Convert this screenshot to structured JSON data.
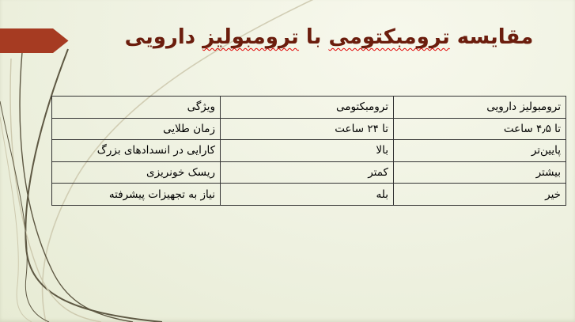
{
  "slide": {
    "title": {
      "full_text": "مقایسه ترومبکتومی با ترومبولیز دارویی",
      "segments": [
        {
          "text": "مقایسه ",
          "misspelled": false
        },
        {
          "text": "ترومبکتومی",
          "misspelled": true
        },
        {
          "text": " با ",
          "misspelled": false
        },
        {
          "text": "ترومبولیز",
          "misspelled": true
        },
        {
          "text": " دارویی",
          "misspelled": false
        }
      ],
      "color": "#6B1D0D"
    },
    "table": {
      "headers": [
        "ترومبولیز دارویی",
        "ترومبکتومی",
        "ویژگی"
      ],
      "rows": [
        [
          "تا ۴٫۵ ساعت",
          "تا ۲۴ ساعت",
          "زمان طلایی"
        ],
        [
          "پایین‌تر",
          "بالا",
          "کارایی در انسدادهای بزرگ"
        ],
        [
          "بیشتر",
          "کمتر",
          "ریسک خونریزی"
        ],
        [
          "خیر",
          "بله",
          "نیاز به تجهیزات پیشرفته"
        ]
      ]
    },
    "decorations": {
      "arrow_color": "#A63B22",
      "swoosh_dark": "#5E5843",
      "swoosh_light": "#CDC9AE",
      "background_light": "#F7F8EC",
      "background_dark": "#E7EBD4",
      "squiggle_color": "#E00000"
    }
  }
}
